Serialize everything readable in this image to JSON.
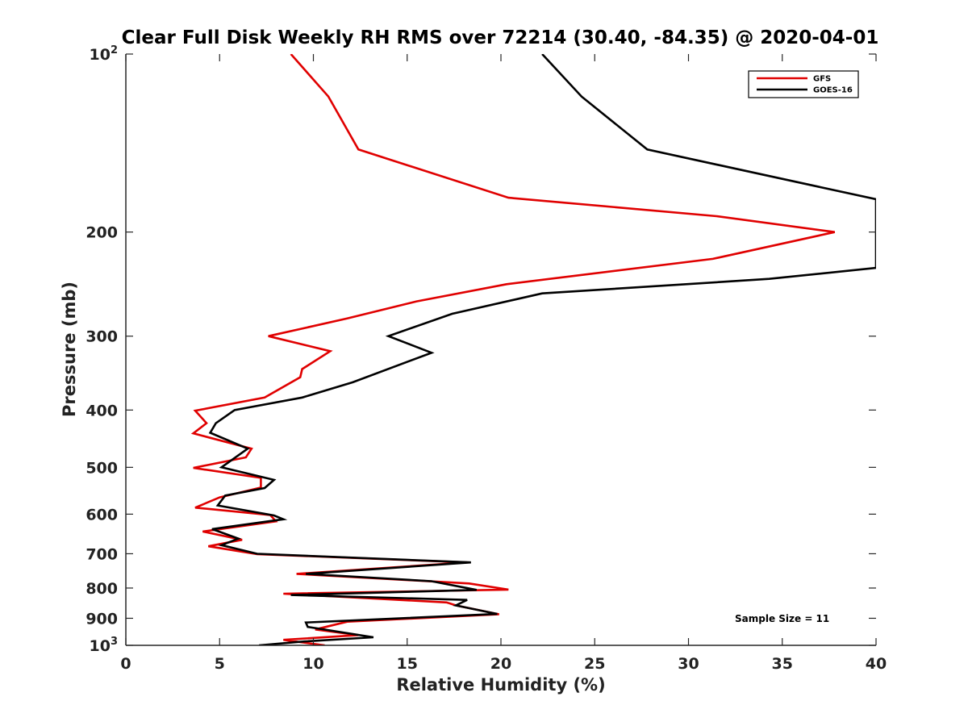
{
  "chart_data": {
    "type": "line",
    "title": "Clear Full Disk Weekly RH RMS over 72214 (30.40, -84.35) @ 2020-04-01",
    "xlabel": "Relative Humidity (%)",
    "ylabel": "Pressure (mb)",
    "xlim": [
      0,
      40
    ],
    "ylim": [
      100,
      1000
    ],
    "yscale": "log",
    "y_reversed": true,
    "grid": false,
    "legend_position": "top-right",
    "x_ticks": [
      0,
      5,
      10,
      15,
      20,
      25,
      30,
      35,
      40
    ],
    "y_ticks": [
      {
        "value": 100,
        "base": "10",
        "exp": "2"
      },
      {
        "value": 200,
        "label": "200"
      },
      {
        "value": 300,
        "label": "300"
      },
      {
        "value": 400,
        "label": "400"
      },
      {
        "value": 500,
        "label": "500"
      },
      {
        "value": 600,
        "label": "600"
      },
      {
        "value": 700,
        "label": "700"
      },
      {
        "value": 800,
        "label": "800"
      },
      {
        "value": 900,
        "label": "900"
      },
      {
        "value": 1000,
        "base": "10",
        "exp": "3"
      }
    ],
    "annotation": "Sample Size = 11",
    "series": [
      {
        "name": "GFS",
        "color": "#e00000",
        "points": [
          [
            8.8,
            100
          ],
          [
            10.8,
            118
          ],
          [
            12.4,
            145
          ],
          [
            20.4,
            175
          ],
          [
            31.5,
            188
          ],
          [
            37.8,
            200
          ],
          [
            31.3,
            222
          ],
          [
            20.3,
            245
          ],
          [
            15.5,
            262
          ],
          [
            11.8,
            280
          ],
          [
            7.6,
            300
          ],
          [
            10.9,
            318
          ],
          [
            9.4,
            341
          ],
          [
            9.3,
            352
          ],
          [
            7.4,
            381
          ],
          [
            3.7,
            401
          ],
          [
            4.3,
            421
          ],
          [
            3.6,
            438
          ],
          [
            6.7,
            465
          ],
          [
            6.4,
            481
          ],
          [
            3.6,
            501
          ],
          [
            7.2,
            521
          ],
          [
            7.2,
            541
          ],
          [
            5.0,
            562
          ],
          [
            3.7,
            585
          ],
          [
            7.7,
            602
          ],
          [
            8.0,
            617
          ],
          [
            4.1,
            642
          ],
          [
            6.2,
            663
          ],
          [
            4.4,
            680
          ],
          [
            7.0,
            701
          ],
          [
            18.2,
            724
          ],
          [
            9.1,
            757
          ],
          [
            18.3,
            786
          ],
          [
            20.4,
            805
          ],
          [
            8.4,
            818
          ],
          [
            17.1,
            846
          ],
          [
            17.6,
            856
          ],
          [
            19.9,
            886
          ],
          [
            11.8,
            912
          ],
          [
            10.1,
            940
          ],
          [
            12.4,
            961
          ],
          [
            8.4,
            979
          ],
          [
            10.6,
            1000
          ]
        ]
      },
      {
        "name": "GOES-16",
        "color": "#000000",
        "points": [
          [
            22.2,
            100
          ],
          [
            24.3,
            118
          ],
          [
            27.8,
            145
          ],
          [
            40.0,
            176
          ],
          [
            40.0,
            230
          ],
          [
            34.3,
            240
          ],
          [
            22.2,
            254
          ],
          [
            17.4,
            275
          ],
          [
            14.0,
            300
          ],
          [
            16.3,
            320
          ],
          [
            12.1,
            359
          ],
          [
            9.4,
            381
          ],
          [
            5.8,
            400
          ],
          [
            4.8,
            421
          ],
          [
            4.5,
            437
          ],
          [
            6.5,
            465
          ],
          [
            5.1,
            500
          ],
          [
            7.9,
            525
          ],
          [
            7.4,
            542
          ],
          [
            5.3,
            558
          ],
          [
            4.9,
            580
          ],
          [
            7.9,
            603
          ],
          [
            8.4,
            612
          ],
          [
            4.6,
            636
          ],
          [
            6.0,
            660
          ],
          [
            5.1,
            677
          ],
          [
            7.0,
            700
          ],
          [
            18.4,
            724
          ],
          [
            9.6,
            757
          ],
          [
            16.3,
            779
          ],
          [
            18.7,
            806
          ],
          [
            8.8,
            822
          ],
          [
            18.2,
            838
          ],
          [
            17.6,
            856
          ],
          [
            19.8,
            885
          ],
          [
            9.6,
            915
          ],
          [
            9.7,
            931
          ],
          [
            13.2,
            969
          ],
          [
            9.5,
            985
          ],
          [
            7.1,
            1000
          ]
        ]
      }
    ]
  }
}
